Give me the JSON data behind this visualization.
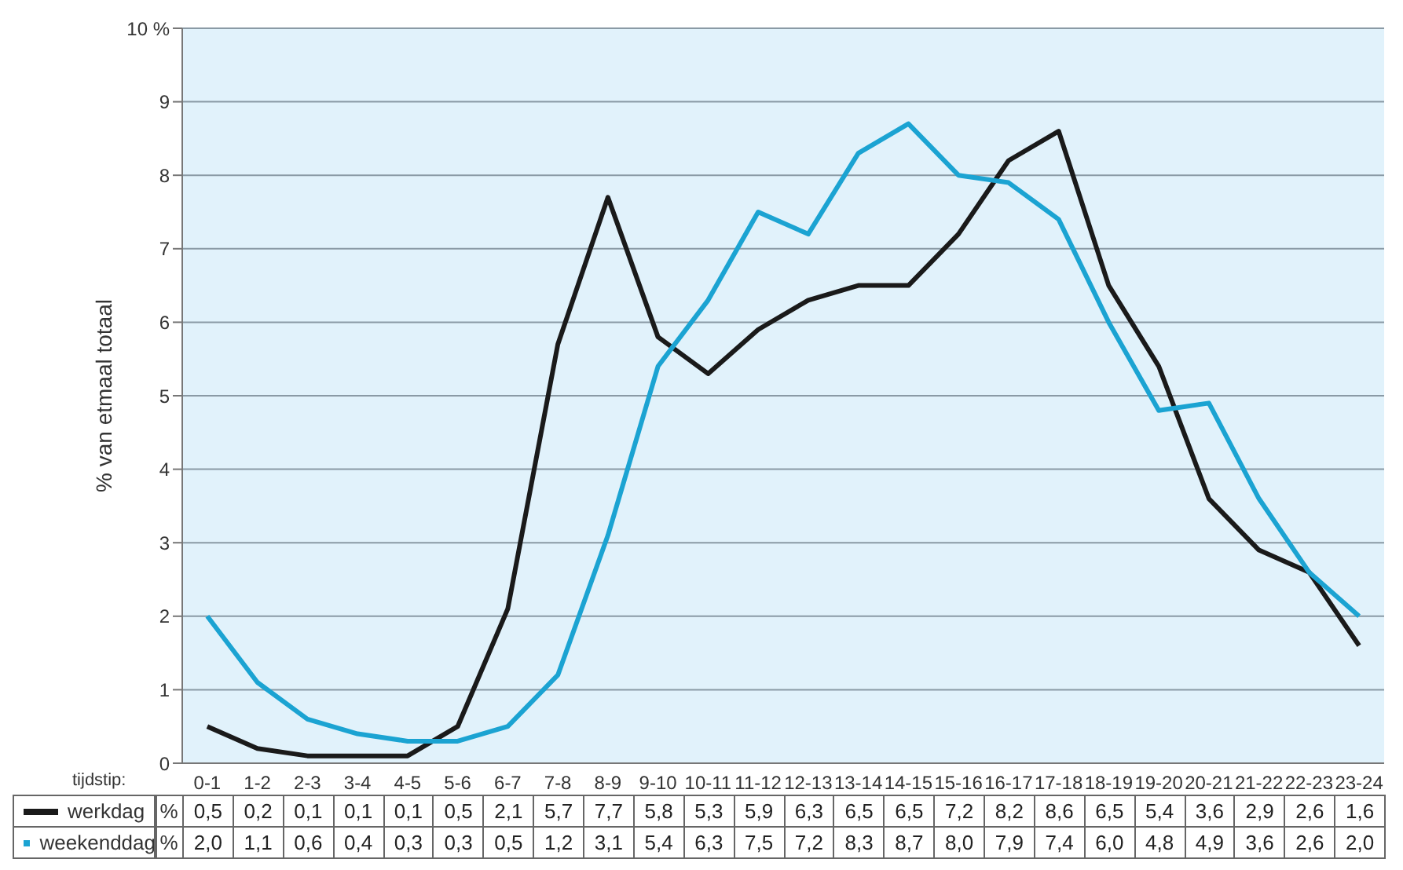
{
  "chart_data": {
    "type": "line",
    "ylabel": "% van etmaal totaal",
    "xlabel": "tijdstip:",
    "categories": [
      "0-1",
      "1-2",
      "2-3",
      "3-4",
      "4-5",
      "5-6",
      "6-7",
      "7-8",
      "8-9",
      "9-10",
      "10-11",
      "11-12",
      "12-13",
      "13-14",
      "14-15",
      "15-16",
      "16-17",
      "17-18",
      "18-19",
      "19-20",
      "20-21",
      "21-22",
      "22-23",
      "23-24"
    ],
    "series": [
      {
        "name": "werkdag",
        "color": "#1a1a1a",
        "values": [
          0.5,
          0.2,
          0.1,
          0.1,
          0.1,
          0.5,
          2.1,
          5.7,
          7.7,
          5.8,
          5.3,
          5.9,
          6.3,
          6.5,
          6.5,
          7.2,
          8.2,
          8.6,
          6.5,
          5.4,
          3.6,
          2.9,
          2.6,
          1.6
        ],
        "value_labels": [
          "0,5",
          "0,2",
          "0,1",
          "0,1",
          "0,1",
          "0,5",
          "2,1",
          "5,7",
          "7,7",
          "5,8",
          "5,3",
          "5,9",
          "6,3",
          "6,5",
          "6,5",
          "7,2",
          "8,2",
          "8,6",
          "6,5",
          "5,4",
          "3,6",
          "2,9",
          "2,6",
          "1,6"
        ]
      },
      {
        "name": "weekenddag",
        "color": "#1ba3d2",
        "values": [
          2.0,
          1.1,
          0.6,
          0.4,
          0.3,
          0.3,
          0.5,
          1.2,
          3.1,
          5.4,
          6.3,
          7.5,
          7.2,
          8.3,
          8.7,
          8.0,
          7.9,
          7.4,
          6.0,
          4.8,
          4.9,
          3.6,
          2.6,
          2.0
        ],
        "value_labels": [
          "2,0",
          "1,1",
          "0,6",
          "0,4",
          "0,3",
          "0,3",
          "0,5",
          "1,2",
          "3,1",
          "5,4",
          "6,3",
          "7,5",
          "7,2",
          "8,3",
          "8,7",
          "8,0",
          "7,9",
          "7,4",
          "6,0",
          "4,8",
          "4,9",
          "3,6",
          "2,6",
          "2,0"
        ]
      }
    ],
    "ylim": [
      0,
      10
    ],
    "yticks": [
      0,
      1,
      2,
      3,
      4,
      5,
      6,
      7,
      8,
      9,
      {
        "value": 10,
        "label": "10 %"
      }
    ],
    "grid": "y",
    "legend": "bottom",
    "marker": "none",
    "line_style": "solid",
    "annotations": [
      "%"
    ]
  }
}
